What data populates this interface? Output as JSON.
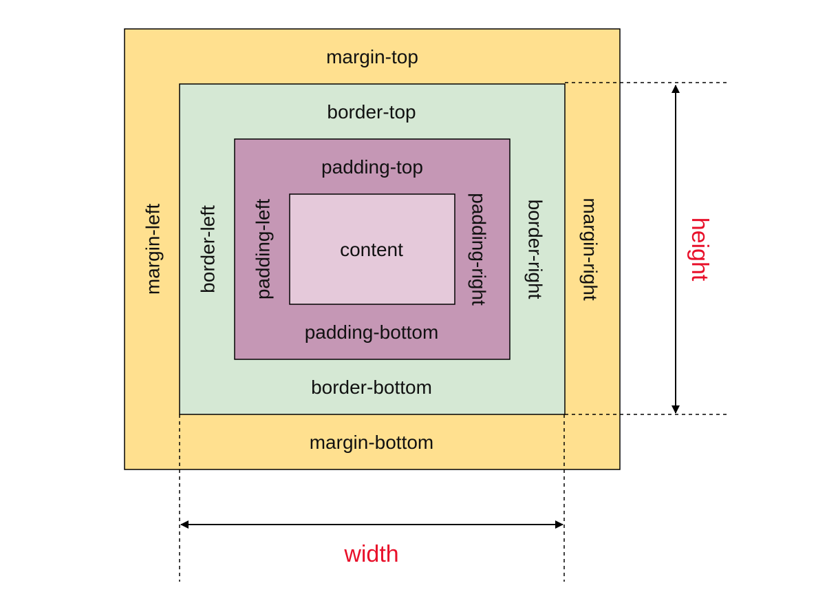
{
  "colors": {
    "margin_fill": "#ffe08f",
    "border_fill": "#d5e8d4",
    "padding_fill": "#c597b5",
    "content_fill": "#e5c9da",
    "outline": "#000000",
    "dimension_label": "#e8102a",
    "text": "#111111"
  },
  "labels": {
    "margin_top": "margin-top",
    "margin_bottom": "margin-bottom",
    "margin_left": "margin-left",
    "margin_right": "margin-right",
    "border_top": "border-top",
    "border_bottom": "border-bottom",
    "border_left": "border-left",
    "border_right": "border-right",
    "padding_top": "padding-top",
    "padding_bottom": "padding-bottom",
    "padding_left": "padding-left",
    "padding_right": "padding-right",
    "content": "content"
  },
  "dimensions": {
    "height": "height",
    "width": "width"
  },
  "icons": {
    "height_arrow": "double-headed-vertical-arrow",
    "width_arrow": "double-headed-horizontal-arrow"
  }
}
